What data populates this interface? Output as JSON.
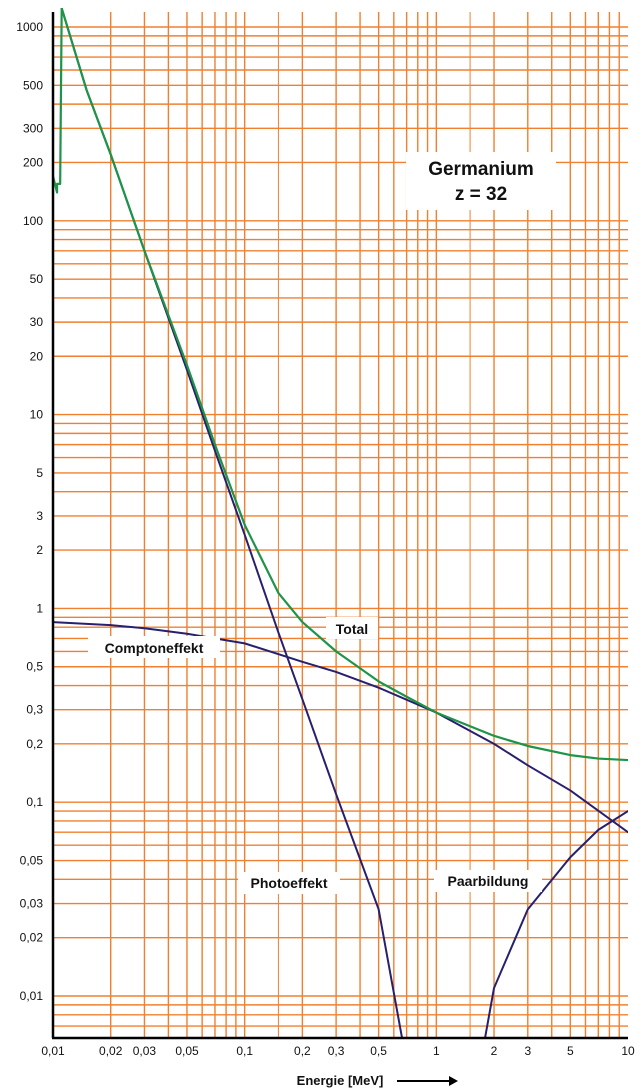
{
  "chart_data": {
    "type": "line",
    "title": "Germanium",
    "subtitle": "z = 32",
    "xlabel": "Energie [MeV]",
    "ylabel": "",
    "x_scale": "log",
    "y_scale": "log",
    "xlim": [
      0.01,
      10
    ],
    "ylim": [
      0.005,
      1300
    ],
    "grid": true,
    "x_ticks": [
      0.01,
      0.02,
      0.03,
      0.05,
      0.1,
      0.2,
      0.3,
      0.5,
      1,
      2,
      3,
      5,
      10
    ],
    "x_tick_labels": [
      "0,01",
      "0,02",
      "0,03",
      "0,05",
      "0,1",
      "0,2",
      "0,3",
      "0,5",
      "1",
      "2",
      "3",
      "5",
      "10"
    ],
    "y_ticks": [
      1000,
      500,
      300,
      200,
      100,
      50,
      30,
      20,
      10,
      5,
      3,
      2,
      1,
      0.5,
      0.3,
      0.2,
      0.1,
      0.05,
      0.03,
      0.02,
      0.01
    ],
    "y_tick_labels": [
      "1000",
      "500",
      "300",
      "200",
      "100",
      "50",
      "30",
      "20",
      "10",
      "5",
      "3",
      "2",
      "1",
      "0,5",
      "0,3",
      "0,2",
      "0,1",
      "0,05",
      "0,03",
      "0,02",
      "0,01"
    ],
    "colors": {
      "grid": "#f08030",
      "total": "#1e9448",
      "component": "#26206e",
      "axis": "#000000"
    },
    "series": [
      {
        "name": "Total",
        "color": "#1e9448",
        "points": [
          [
            0.01,
            170
          ],
          [
            0.0105,
            140
          ],
          [
            0.0105,
            155
          ],
          [
            0.0109,
            155
          ],
          [
            0.0111,
            1250
          ],
          [
            0.015,
            470
          ],
          [
            0.02,
            220
          ],
          [
            0.03,
            70
          ],
          [
            0.05,
            18
          ],
          [
            0.07,
            7
          ],
          [
            0.1,
            2.7
          ],
          [
            0.15,
            1.2
          ],
          [
            0.2,
            0.85
          ],
          [
            0.3,
            0.6
          ],
          [
            0.5,
            0.42
          ],
          [
            0.7,
            0.35
          ],
          [
            1,
            0.29
          ],
          [
            2,
            0.22
          ],
          [
            3,
            0.195
          ],
          [
            5,
            0.175
          ],
          [
            7,
            0.168
          ],
          [
            10,
            0.165
          ]
        ]
      },
      {
        "name": "Comptoneffekt",
        "color": "#26206e",
        "points": [
          [
            0.01,
            0.85
          ],
          [
            0.02,
            0.82
          ],
          [
            0.03,
            0.79
          ],
          [
            0.05,
            0.74
          ],
          [
            0.1,
            0.66
          ],
          [
            0.2,
            0.53
          ],
          [
            0.3,
            0.47
          ],
          [
            0.5,
            0.39
          ],
          [
            1,
            0.29
          ],
          [
            2,
            0.2
          ],
          [
            3,
            0.155
          ],
          [
            5,
            0.115
          ],
          [
            10,
            0.07
          ]
        ]
      },
      {
        "name": "Photoeffekt",
        "color": "#26206e",
        "points": [
          [
            0.0111,
            1250
          ],
          [
            0.015,
            470
          ],
          [
            0.02,
            220
          ],
          [
            0.03,
            70
          ],
          [
            0.05,
            17
          ],
          [
            0.07,
            6.5
          ],
          [
            0.1,
            2.4
          ],
          [
            0.15,
            0.75
          ],
          [
            0.2,
            0.34
          ],
          [
            0.3,
            0.11
          ],
          [
            0.5,
            0.028
          ],
          [
            0.7,
            0.0045
          ]
        ]
      },
      {
        "name": "Paarbildung",
        "color": "#26206e",
        "points": [
          [
            1.7,
            0.0045
          ],
          [
            2,
            0.011
          ],
          [
            3,
            0.028
          ],
          [
            5,
            0.052
          ],
          [
            7,
            0.072
          ],
          [
            10,
            0.09
          ]
        ]
      }
    ],
    "annotations": {
      "total": "Total",
      "compton": "Comptoneffekt",
      "photo": "Photoeffekt",
      "pair": "Paarbildung"
    }
  }
}
